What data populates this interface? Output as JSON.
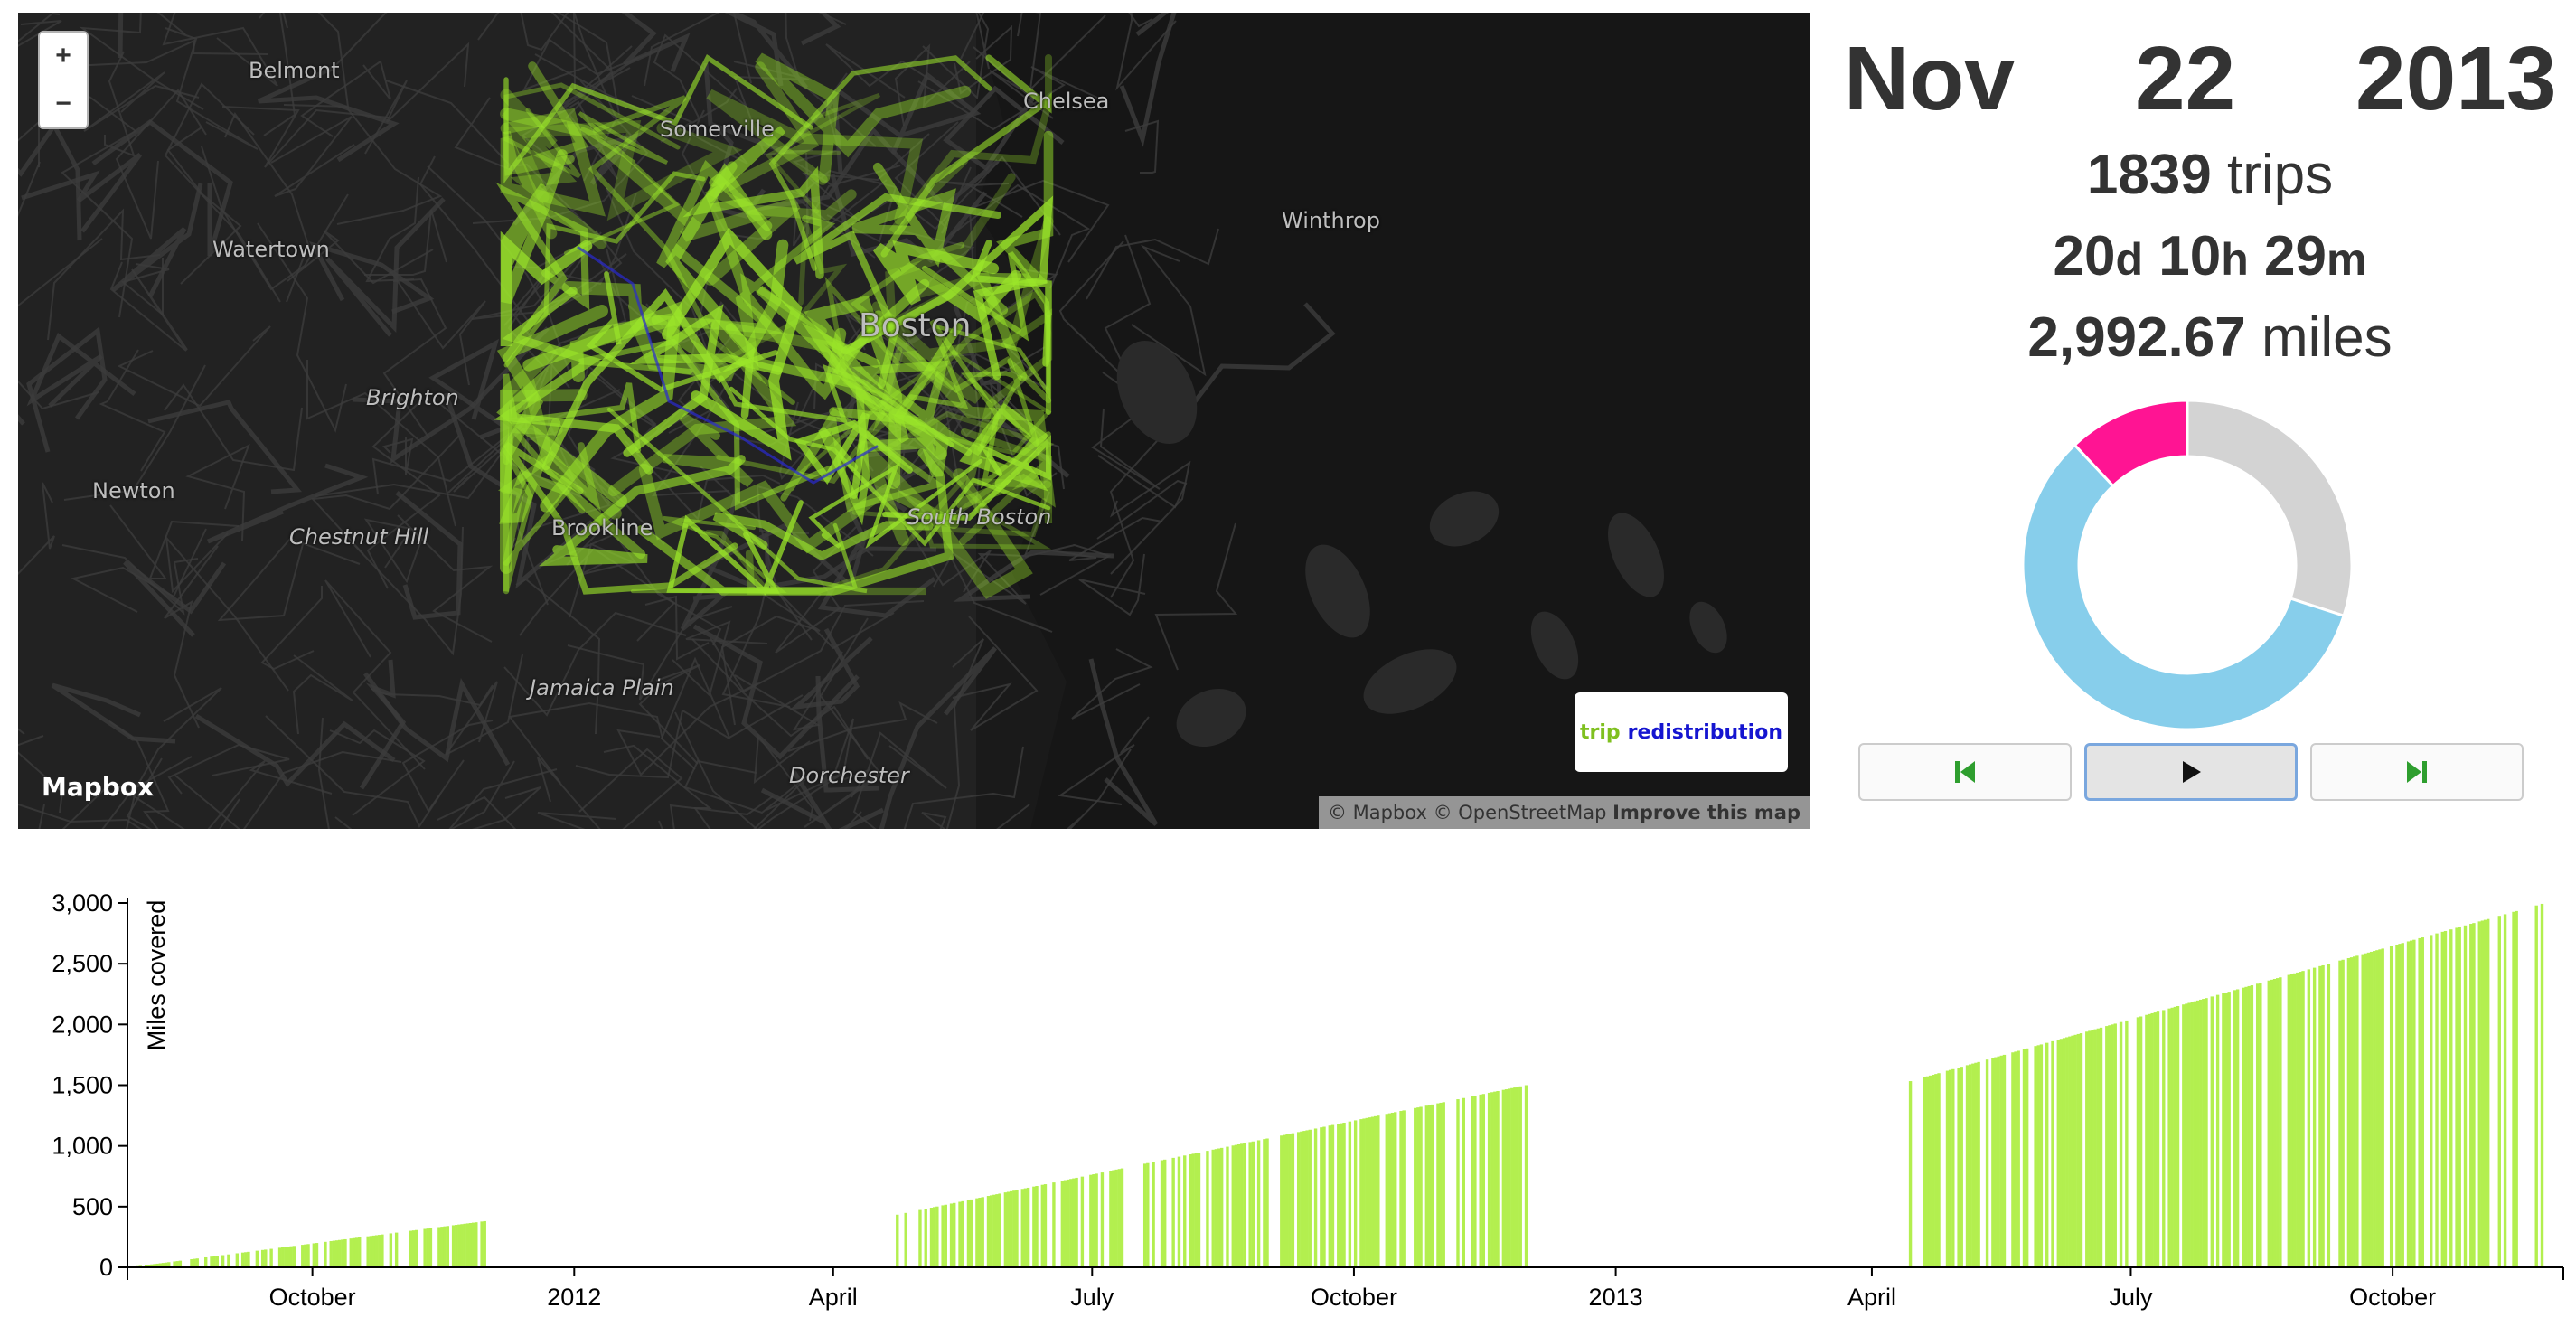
{
  "map": {
    "zoom_in": "+",
    "zoom_out": "−",
    "labels": [
      {
        "text": "Belmont",
        "italic": false
      },
      {
        "text": "Somerville",
        "italic": false
      },
      {
        "text": "Chelsea",
        "italic": false
      },
      {
        "text": "Winthrop",
        "italic": false
      },
      {
        "text": "Watertown",
        "italic": false
      },
      {
        "text": "Brighton",
        "italic": true
      },
      {
        "text": "Boston",
        "italic": false
      },
      {
        "text": "Newton",
        "italic": false
      },
      {
        "text": "Chestnut Hill",
        "italic": true
      },
      {
        "text": "Brookline",
        "italic": false
      },
      {
        "text": "South Boston",
        "italic": true
      },
      {
        "text": "Jamaica Plain",
        "italic": true
      },
      {
        "text": "Dorchester",
        "italic": true
      }
    ],
    "logo": "Mapbox",
    "attribution_text": "© Mapbox © OpenStreetMap",
    "attribution_link": "Improve this map",
    "legend_trip": "trip",
    "legend_redistribution": "redistribution",
    "route_color": "#9be62a",
    "redistribution_color": "#2a2ad0"
  },
  "date": {
    "month": "Nov",
    "day": "22",
    "year": "2013"
  },
  "stats": {
    "trips_value": "1839",
    "trips_unit": "trips",
    "d_value": "20",
    "d_unit": "d",
    "h_value": "10",
    "h_unit": "h",
    "m_value": "29",
    "m_unit": "m",
    "miles_value": "2,992.67",
    "miles_unit": "miles"
  },
  "donut": {
    "segments": [
      {
        "value": 0.3,
        "color": "#d3d3d3"
      },
      {
        "value": 0.58,
        "color": "#87ceeb"
      },
      {
        "value": 0.12,
        "color": "#ff1493"
      }
    ]
  },
  "controls": {
    "prev_icon": "skip-back-icon",
    "play_icon": "play-icon",
    "next_icon": "skip-forward-icon",
    "icon_color": "#2e9e2e"
  },
  "chart_data": {
    "type": "bar",
    "ylabel": "Miles covered",
    "ylim": [
      0,
      3000
    ],
    "yticks": [
      0,
      500,
      1000,
      1500,
      2000,
      2500,
      3000
    ],
    "ytick_labels": [
      "0",
      "500",
      "1,000",
      "1,500",
      "2,000",
      "2,500",
      "3,000"
    ],
    "xlim": [
      "2011-07-28",
      "2013-11-30"
    ],
    "xticks": [
      {
        "date": "2011-10-01",
        "label": "October"
      },
      {
        "date": "2012-01-01",
        "label": "2012"
      },
      {
        "date": "2012-04-01",
        "label": "April"
      },
      {
        "date": "2012-07-01",
        "label": "July"
      },
      {
        "date": "2012-10-01",
        "label": "October"
      },
      {
        "date": "2013-01-01",
        "label": "2013"
      },
      {
        "date": "2013-04-01",
        "label": "April"
      },
      {
        "date": "2013-07-01",
        "label": "July"
      },
      {
        "date": "2013-10-01",
        "label": "October"
      }
    ],
    "bar_color": "#b3ef4f",
    "seasons": [
      {
        "start": "2011-07-28",
        "end": "2011-11-30",
        "y_start": 0,
        "y_end": 380
      },
      {
        "start": "2012-04-14",
        "end": "2012-11-30",
        "y_start": 390,
        "y_end": 1500
      },
      {
        "start": "2013-04-12",
        "end": "2013-11-22",
        "y_start": 1520,
        "y_end": 2993
      }
    ]
  }
}
